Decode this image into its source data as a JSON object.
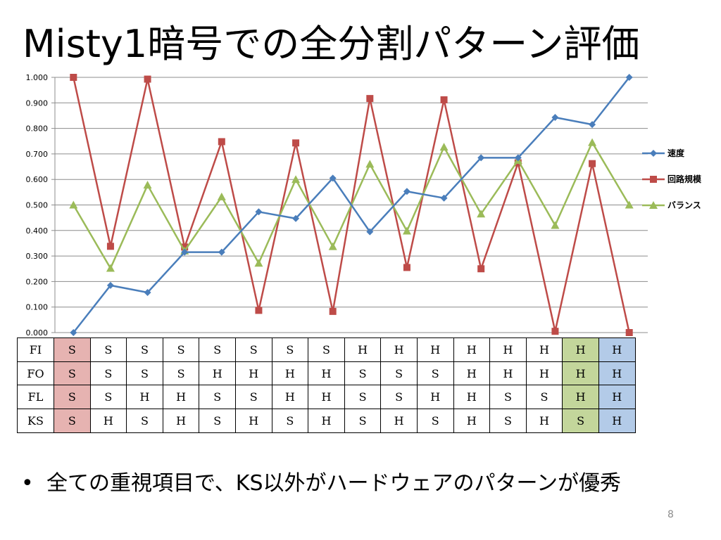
{
  "slide": {
    "title": "Misty1暗号での全分割パターン評価",
    "bullet_symbol": "•",
    "bullet_text": "全ての重視項目で、KS以外がハードウェアのパターンが優秀",
    "page_number": "8"
  },
  "chart_data": {
    "type": "line",
    "title": "",
    "xlabel": "",
    "ylabel": "",
    "ylim": [
      0,
      1
    ],
    "y_ticks": [
      "0.000",
      "0.100",
      "0.200",
      "0.300",
      "0.400",
      "0.500",
      "0.600",
      "0.700",
      "0.800",
      "0.900",
      "1.000"
    ],
    "grid": true,
    "legend_position": "right",
    "x": [
      1,
      2,
      3,
      4,
      5,
      6,
      7,
      8,
      9,
      10,
      11,
      12,
      13,
      14,
      15,
      16
    ],
    "series": [
      {
        "name": "速度",
        "color": "#4a7ebb",
        "marker": "diamond",
        "values": [
          0.0,
          0.185,
          0.157,
          0.315,
          0.315,
          0.473,
          0.447,
          0.605,
          0.395,
          0.553,
          0.527,
          0.685,
          0.685,
          0.843,
          0.815,
          1.0
        ]
      },
      {
        "name": "回路規模",
        "color": "#be4b48",
        "marker": "square",
        "values": [
          1.0,
          0.338,
          0.993,
          0.335,
          0.748,
          0.087,
          0.743,
          0.083,
          0.917,
          0.255,
          0.912,
          0.25,
          0.665,
          0.005,
          0.662,
          0.0
        ]
      },
      {
        "name": "バランス",
        "color": "#9bbb59",
        "marker": "triangle",
        "values": [
          0.5,
          0.252,
          0.578,
          0.32,
          0.532,
          0.272,
          0.6,
          0.337,
          0.66,
          0.398,
          0.727,
          0.465,
          0.675,
          0.42,
          0.745,
          0.5
        ]
      }
    ]
  },
  "pattern_table": {
    "rows": [
      {
        "label": "FI",
        "cells": [
          "S",
          "S",
          "S",
          "S",
          "S",
          "S",
          "S",
          "S",
          "H",
          "H",
          "H",
          "H",
          "H",
          "H",
          "H",
          "H"
        ]
      },
      {
        "label": "FO",
        "cells": [
          "S",
          "S",
          "S",
          "S",
          "H",
          "H",
          "H",
          "H",
          "S",
          "S",
          "S",
          "H",
          "H",
          "H",
          "H",
          "H"
        ]
      },
      {
        "label": "FL",
        "cells": [
          "S",
          "S",
          "H",
          "H",
          "S",
          "S",
          "H",
          "H",
          "S",
          "S",
          "H",
          "H",
          "S",
          "S",
          "H",
          "H"
        ]
      },
      {
        "label": "KS",
        "cells": [
          "S",
          "H",
          "S",
          "H",
          "S",
          "H",
          "S",
          "H",
          "S",
          "H",
          "S",
          "H",
          "S",
          "H",
          "S",
          "H"
        ]
      }
    ],
    "highlight_colors": {
      "column_1": "#e6b3b1",
      "column_15": "#c3d69b",
      "column_16": "#b3cbe8"
    }
  }
}
